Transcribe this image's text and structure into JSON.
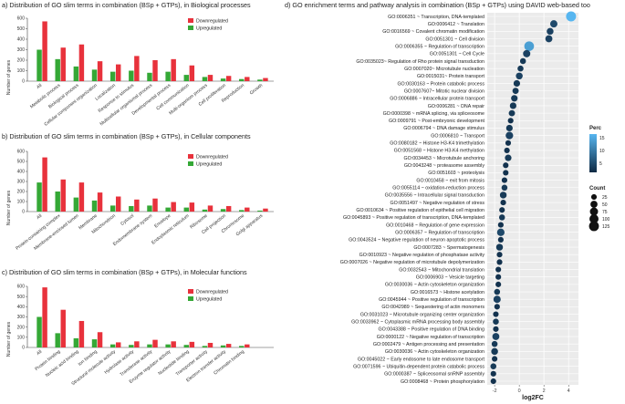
{
  "colors": {
    "down": "#e8323c",
    "up": "#35a836",
    "axis": "#444",
    "grid": "#ffffff",
    "panel": "#ebebeb",
    "dotLow": "#0f2a44",
    "dotHigh": "#57b6f0"
  },
  "chart_data": [
    {
      "type": "bar",
      "panel": "a",
      "title": "a) Distribution of GO slim terms in combination (BSp + GTPs), in Biological processes",
      "ylabel": "Number of genes",
      "ylim": [
        0,
        600
      ],
      "yticks": [
        0,
        100,
        200,
        300,
        400,
        500,
        600
      ],
      "legend": [
        "Downregulated",
        "Upregulated"
      ],
      "categories": [
        "All",
        "Metabolic process",
        "Biological process",
        "Cellular component organization",
        "Localization",
        "Response to stimulus",
        "Multicellular organismal process",
        "Developmental process",
        "Cell communication",
        "Multi-organism process",
        "Cell proliferation",
        "Reproduction",
        "Growth"
      ],
      "series": [
        {
          "name": "Downregulated",
          "values": [
            570,
            320,
            350,
            190,
            160,
            240,
            200,
            210,
            150,
            60,
            50,
            40,
            30
          ]
        },
        {
          "name": "Upregulated",
          "values": [
            300,
            210,
            140,
            110,
            90,
            100,
            80,
            90,
            60,
            40,
            25,
            20,
            15
          ]
        }
      ]
    },
    {
      "type": "bar",
      "panel": "b",
      "title": "b) Distribution of GO slim terms in combination (BSp + GTPs), in Cellular components",
      "ylabel": "Number of genes",
      "ylim": [
        0,
        600
      ],
      "yticks": [
        0,
        100,
        200,
        300,
        400,
        500,
        600
      ],
      "legend": [
        "Downregulated",
        "Upregulated"
      ],
      "categories": [
        "All",
        "Protein-containing complex",
        "Membrane-enclosed lumen",
        "Membrane",
        "Mitochondrion",
        "Cytosol",
        "Endomembrane system",
        "Envelope",
        "Endoplasmic reticulum",
        "Ribosome",
        "Cell projection",
        "Chromosome",
        "Golgi apparatus"
      ],
      "series": [
        {
          "name": "Downregulated",
          "values": [
            540,
            320,
            290,
            190,
            150,
            120,
            130,
            95,
            90,
            60,
            55,
            40,
            30
          ]
        },
        {
          "name": "Upregulated",
          "values": [
            290,
            200,
            140,
            110,
            60,
            55,
            60,
            40,
            40,
            20,
            25,
            15,
            10
          ]
        }
      ]
    },
    {
      "type": "bar",
      "panel": "c",
      "title": "c) Distribution of GO slim terms in combination (BSp + GTPs), in Molecular functions",
      "ylabel": "Number of genes",
      "ylim": [
        0,
        600
      ],
      "yticks": [
        0,
        100,
        200,
        300,
        400,
        500,
        600
      ],
      "legend": [
        "Downregulated",
        "Upregulated"
      ],
      "categories": [
        "All",
        "Protein binding",
        "Nucleic acid binding",
        "Ion binding",
        "Structural molecule activity",
        "Hydrolase activity",
        "Transferase activity",
        "Enzyme regulator activity",
        "Nucleotide binding",
        "Transporter activity",
        "Electron transfer activity",
        "Chromatin binding"
      ],
      "series": [
        {
          "name": "Downregulated",
          "values": [
            590,
            370,
            260,
            150,
            50,
            60,
            75,
            60,
            55,
            45,
            35,
            30
          ]
        },
        {
          "name": "Upregulated",
          "values": [
            300,
            140,
            90,
            80,
            30,
            25,
            30,
            30,
            25,
            15,
            20,
            15
          ]
        }
      ]
    },
    {
      "type": "scatter",
      "panel": "d",
      "title": "d) GO enrichment terms and pathway analysis in combination (BSp + GTPs) using DAVID web-based too",
      "xlabel": "log2FC",
      "xlim": [
        -2.6,
        4.8
      ],
      "xticks": [
        -2,
        0,
        2,
        4
      ],
      "colorLegend": {
        "title": "Perc",
        "ticks": [
          "15",
          "10",
          "5"
        ]
      },
      "sizeLegend": {
        "title": "Count",
        "values": [
          "25",
          "50",
          "75",
          "100",
          "125"
        ]
      },
      "terms": [
        {
          "label": "GO:0006351 ~ Transcription, DNA-templated",
          "x": 4.2,
          "count": 130,
          "perc": 18
        },
        {
          "label": "GO:0006412 ~ Translation",
          "x": 2.8,
          "count": 55,
          "perc": 4
        },
        {
          "label": "GO:0016569 ~ Covalent chromatin modification",
          "x": 2.5,
          "count": 45,
          "perc": 3
        },
        {
          "label": "GO:0051301 ~ Cell division",
          "x": 2.4,
          "count": 50,
          "perc": 3
        },
        {
          "label": "GO:0006355 ~ Regulation of transcription",
          "x": 0.8,
          "count": 120,
          "perc": 15
        },
        {
          "label": "GO:0051301 ~ Cell Cycle",
          "x": 0.6,
          "count": 55,
          "perc": 3
        },
        {
          "label": "GO:0035023~ Regulation of Rho protein signal transduction",
          "x": 0.3,
          "count": 30,
          "perc": 2
        },
        {
          "label": "GO:0007020~ Microtubule nucleation",
          "x": 0.1,
          "count": 30,
          "perc": 2
        },
        {
          "label": "GO:0015031~ Protein transport",
          "x": 0.0,
          "count": 45,
          "perc": 3
        },
        {
          "label": "GO:0030163 ~ Protein catabolic process",
          "x": -0.2,
          "count": 40,
          "perc": 2
        },
        {
          "label": "GO:0007607~ Mitotic nuclear division",
          "x": -0.3,
          "count": 35,
          "perc": 2
        },
        {
          "label": "GO:0006886 ~ Intracellular protein transport",
          "x": -0.4,
          "count": 40,
          "perc": 2
        },
        {
          "label": "GO:0006281 ~ DNA repair",
          "x": -0.5,
          "count": 40,
          "perc": 2
        },
        {
          "label": "GO:0000398 ~ mRNA splicing, via spliceosome",
          "x": -0.6,
          "count": 35,
          "perc": 2
        },
        {
          "label": "GO:0009791 ~ Post-embryonic development",
          "x": -0.7,
          "count": 25,
          "perc": 1
        },
        {
          "label": "GO:0006794 ~ DNA damage stimulus",
          "x": -0.8,
          "count": 40,
          "perc": 2
        },
        {
          "label": "GO:0006810 ~ Transport",
          "x": -0.8,
          "count": 60,
          "perc": 3
        },
        {
          "label": "GO:0080182 ~ Histone H3-K4 trimethylation",
          "x": -0.9,
          "count": 25,
          "perc": 1
        },
        {
          "label": "GO:0051568 ~ Histone H3-K4 methylation",
          "x": -1.0,
          "count": 25,
          "perc": 1
        },
        {
          "label": "GO:0034453 ~ Microtubule anchoring",
          "x": -0.9,
          "count": 40,
          "perc": 2
        },
        {
          "label": "GO:0043248 ~ proteasome assembly",
          "x": -1.1,
          "count": 25,
          "perc": 1
        },
        {
          "label": "GO:0051603 ~ proteolysis",
          "x": -1.1,
          "count": 25,
          "perc": 1
        },
        {
          "label": "GO:0010458 ~ exit from mitosis",
          "x": -1.2,
          "count": 25,
          "perc": 1
        },
        {
          "label": "GO:0055114 ~ oxidation-reduction process",
          "x": -1.2,
          "count": 30,
          "perc": 2
        },
        {
          "label": "GO:0035556 ~ Intracellular signal transduction",
          "x": -1.3,
          "count": 45,
          "perc": 2
        },
        {
          "label": "GO:0051497 ~ Negative regulation of stress",
          "x": -1.3,
          "count": 25,
          "perc": 1
        },
        {
          "label": "GO:0010634 ~ Positive regulation of epithelial cell migration",
          "x": -1.4,
          "count": 25,
          "perc": 1
        },
        {
          "label": "GO:0045893 ~ Positive regulation of transcription, DNA-templated",
          "x": -1.4,
          "count": 30,
          "perc": 2
        },
        {
          "label": "GO:0010468 ~ Regulation of gene expression",
          "x": -1.5,
          "count": 25,
          "perc": 1
        },
        {
          "label": "GO:0006357 ~ Regulation of transcription",
          "x": -1.5,
          "count": 60,
          "perc": 4
        },
        {
          "label": "GO:0043524 ~ Negative regulation of neuron apoptotic process",
          "x": -1.5,
          "count": 25,
          "perc": 1
        },
        {
          "label": "GO:0007283 ~ Spermatogenesis",
          "x": -1.6,
          "count": 45,
          "perc": 2
        },
        {
          "label": "GO:0010923 ~ Negative regulation of phosphatase activity",
          "x": -1.6,
          "count": 25,
          "perc": 1
        },
        {
          "label": "GO:0007026 ~ Negative regulation of microtubule depolymerization",
          "x": -1.6,
          "count": 25,
          "perc": 1
        },
        {
          "label": "GO:0032543 ~ Mitochondrial translation",
          "x": -1.7,
          "count": 25,
          "perc": 1
        },
        {
          "label": "GO:0006903 ~ Vesicle targeting",
          "x": -1.7,
          "count": 25,
          "perc": 1
        },
        {
          "label": "GO:0030036 ~ Actin cytoskeleton organization",
          "x": -1.7,
          "count": 25,
          "perc": 1
        },
        {
          "label": "GO:0016573 ~ Histone acetylation",
          "x": -1.8,
          "count": 30,
          "perc": 2
        },
        {
          "label": "GO:0045944 ~ Positive regulation of transcription",
          "x": -1.8,
          "count": 55,
          "perc": 3
        },
        {
          "label": "GO:0042989 ~ Sequestering of actin monomers",
          "x": -1.8,
          "count": 25,
          "perc": 1
        },
        {
          "label": "GO:0031023 ~ Microtubule organizing center organization",
          "x": -1.9,
          "count": 25,
          "perc": 1
        },
        {
          "label": "GO:0033962 ~ Cytoplasmic mRNA processing body assembly",
          "x": -1.9,
          "count": 30,
          "perc": 2
        },
        {
          "label": "GO:0043388 ~ Positive regulation of DNA binding",
          "x": -1.9,
          "count": 25,
          "perc": 1
        },
        {
          "label": "GO:0000122 ~ Negative regulation of transcription",
          "x": -1.9,
          "count": 50,
          "perc": 3
        },
        {
          "label": "GO:0002479 ~ Antigen processing and presentation",
          "x": -2.0,
          "count": 30,
          "perc": 2
        },
        {
          "label": "GO:0030036 ~ Actin cytoskeleton organization",
          "x": -2.0,
          "count": 45,
          "perc": 2
        },
        {
          "label": "GO:0045022 ~ Early endosome to late endosome transport",
          "x": -2.0,
          "count": 25,
          "perc": 1
        },
        {
          "label": "GO:0071596 ~ Ubiquitin-dependent protein catabolic process",
          "x": -2.1,
          "count": 30,
          "perc": 2
        },
        {
          "label": "GO:0000387 ~ Spliceosomal snRNP assembly",
          "x": -2.1,
          "count": 25,
          "perc": 1
        },
        {
          "label": "GO:0008468 ~ Protein phosphorylation",
          "x": -2.1,
          "count": 25,
          "perc": 1
        }
      ]
    }
  ]
}
